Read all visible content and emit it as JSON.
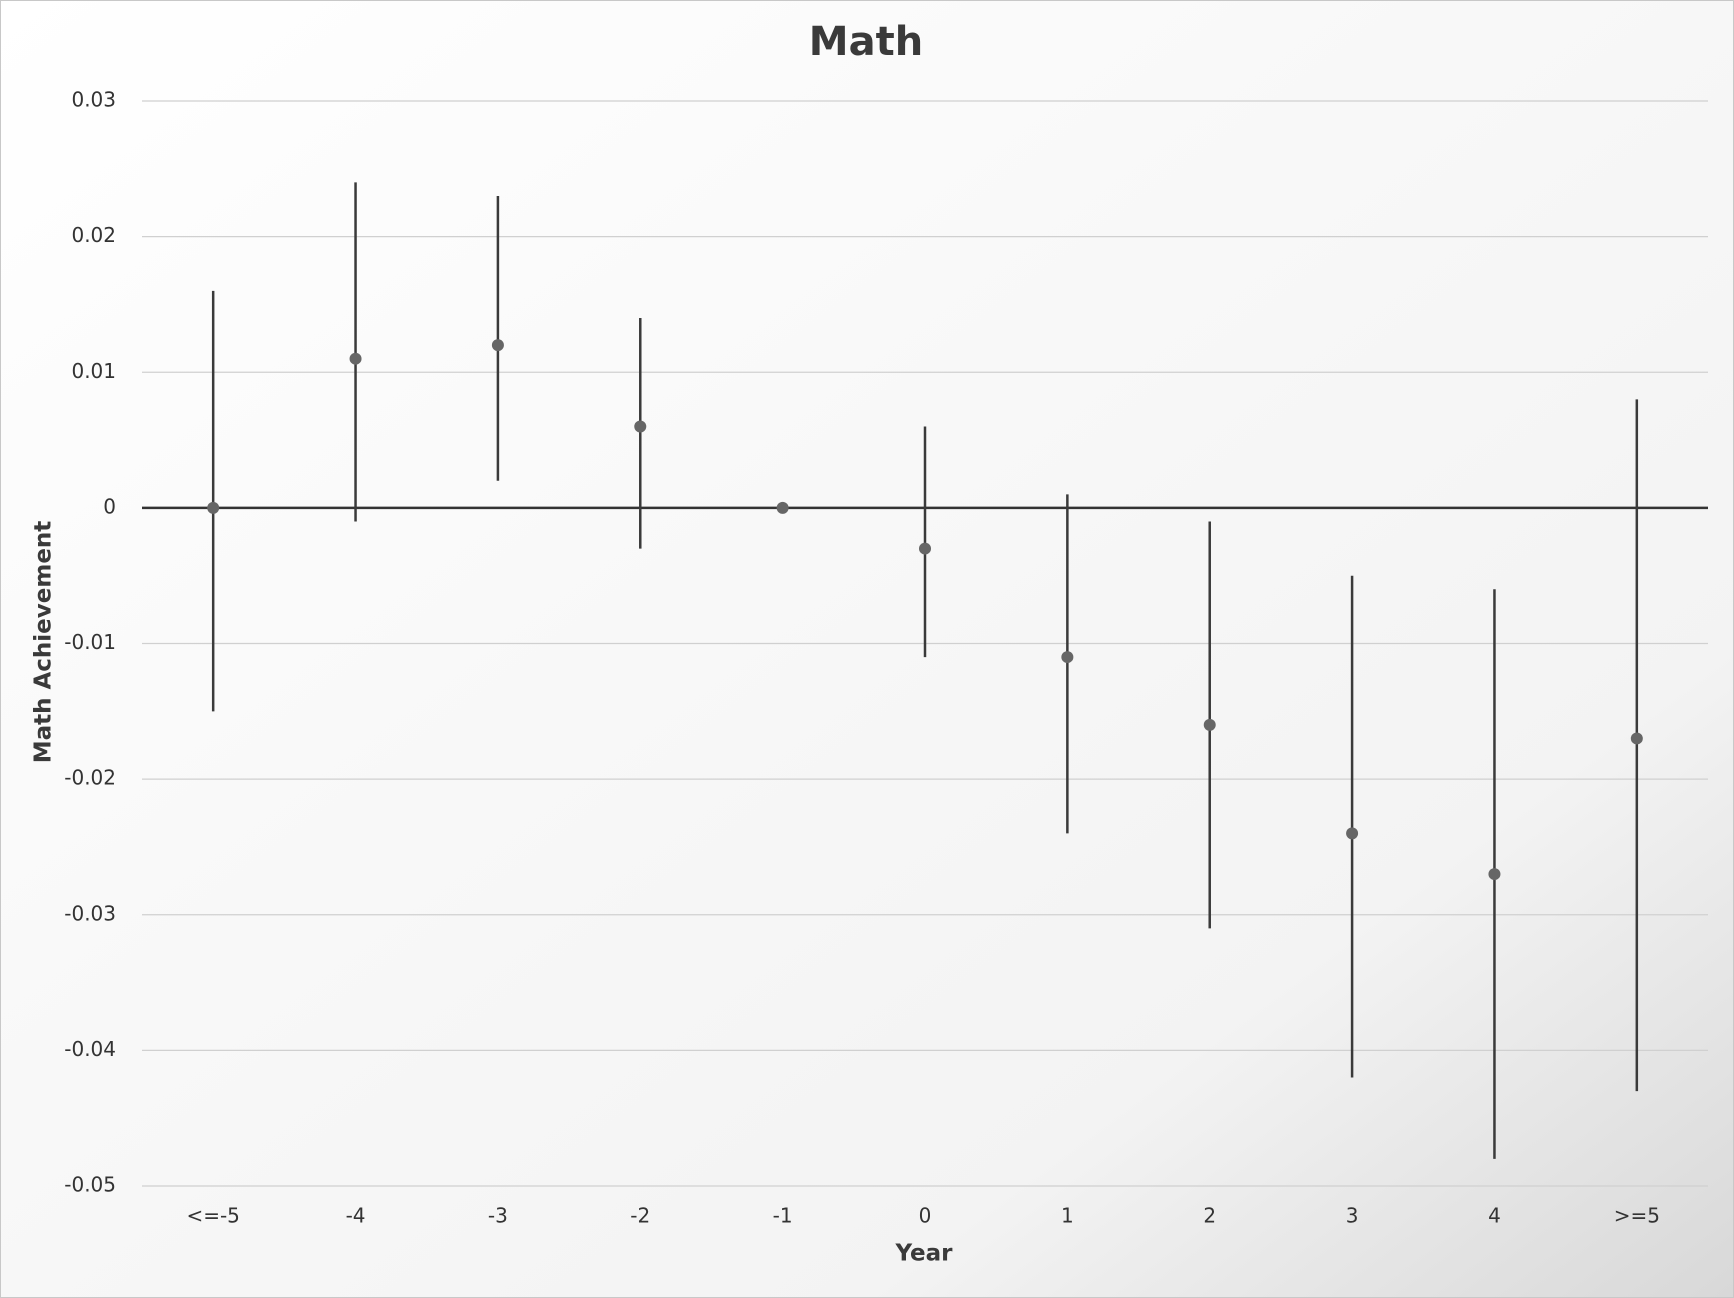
{
  "chart_data": {
    "type": "errorbar",
    "title": "Math",
    "x_label": "Year",
    "y_label": "Math Achievement",
    "categories": [
      "<=-5",
      "-4",
      "-3",
      "-2",
      "-1",
      "0",
      "1",
      "2",
      "3",
      "4",
      ">=5"
    ],
    "values": [
      0,
      0.011,
      0.012,
      0.006,
      0,
      -0.003,
      -0.011,
      -0.016,
      -0.024,
      -0.027,
      -0.017
    ],
    "lower": [
      -0.015,
      -0.001,
      0.002,
      -0.003,
      null,
      -0.011,
      -0.024,
      -0.031,
      -0.042,
      -0.048,
      -0.043
    ],
    "upper": [
      0.016,
      0.024,
      0.023,
      0.014,
      null,
      0.006,
      0.001,
      -0.001,
      -0.005,
      -0.006,
      0.008
    ],
    "color": "#666666",
    "bar_color": "#3a3a3a",
    "ylim": [
      -0.05,
      0.03
    ],
    "yticks": [
      0.03,
      0.02,
      0.01,
      0,
      -0.01,
      -0.02,
      -0.03,
      -0.04,
      -0.05
    ],
    "grid": true
  }
}
